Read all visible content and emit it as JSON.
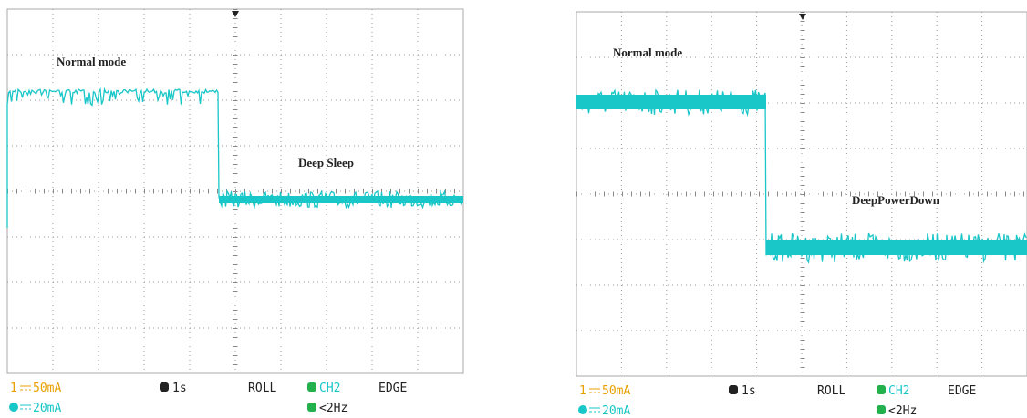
{
  "panels": [
    {
      "annotations": [
        "Normal mode",
        "Deep Sleep"
      ],
      "status": {
        "ch1_number": "1",
        "ch1_scale": "50mA",
        "ch2_scale": "20mA",
        "timebase": "1s",
        "mode": "ROLL",
        "trigger_source": "CH2",
        "trigger_type": "EDGE",
        "trigger_freq": "<2Hz"
      }
    },
    {
      "annotations": [
        "Normal mode",
        "DeepPowerDown"
      ],
      "status": {
        "ch1_number": "1",
        "ch1_scale": "50mA",
        "ch2_scale": "20mA",
        "timebase": "1s",
        "mode": "ROLL",
        "trigger_source": "CH2",
        "trigger_type": "EDGE",
        "trigger_freq": "<2Hz"
      }
    }
  ]
}
